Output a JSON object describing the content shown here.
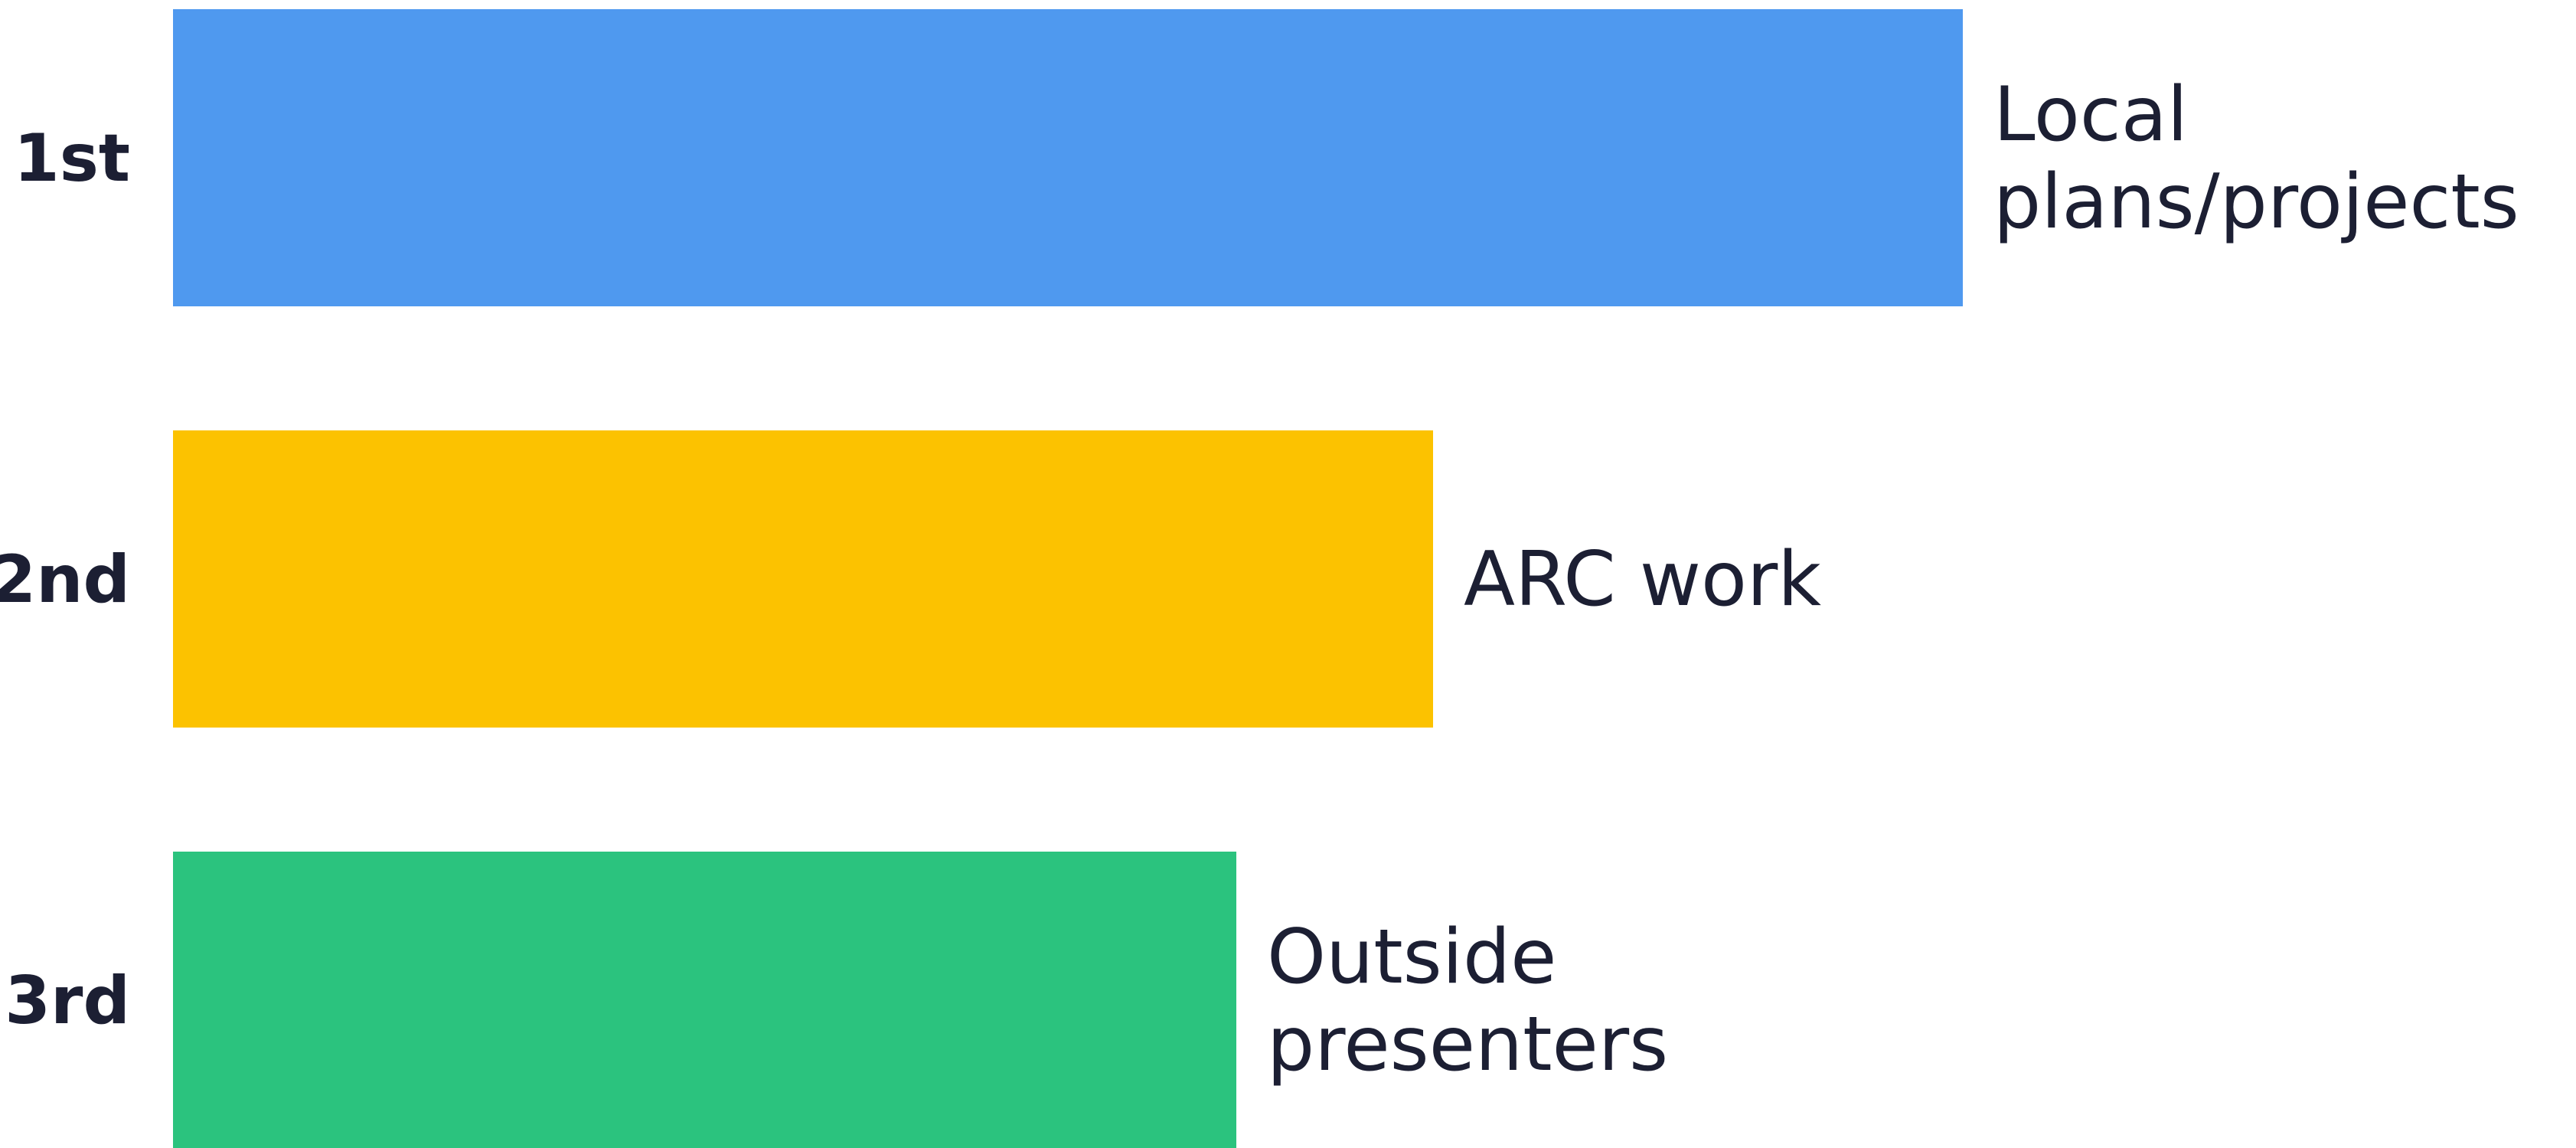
{
  "chart_data": {
    "type": "bar",
    "orientation": "horizontal",
    "title": "",
    "xlabel": "",
    "ylabel": "",
    "grid": false,
    "rows": [
      {
        "rank": "1st",
        "label_lines": [
          "Local",
          "plans/projects"
        ],
        "value": 100,
        "color": "#4f99ef"
      },
      {
        "rank": "2nd",
        "label_lines": [
          "ARC work"
        ],
        "value": 70.4,
        "color": "#fcc200"
      },
      {
        "rank": "3rd",
        "label_lines": [
          "Outside",
          "presenters"
        ],
        "value": 59.4,
        "color": "#2bc37e"
      }
    ],
    "xlim": [
      0,
      100
    ]
  }
}
